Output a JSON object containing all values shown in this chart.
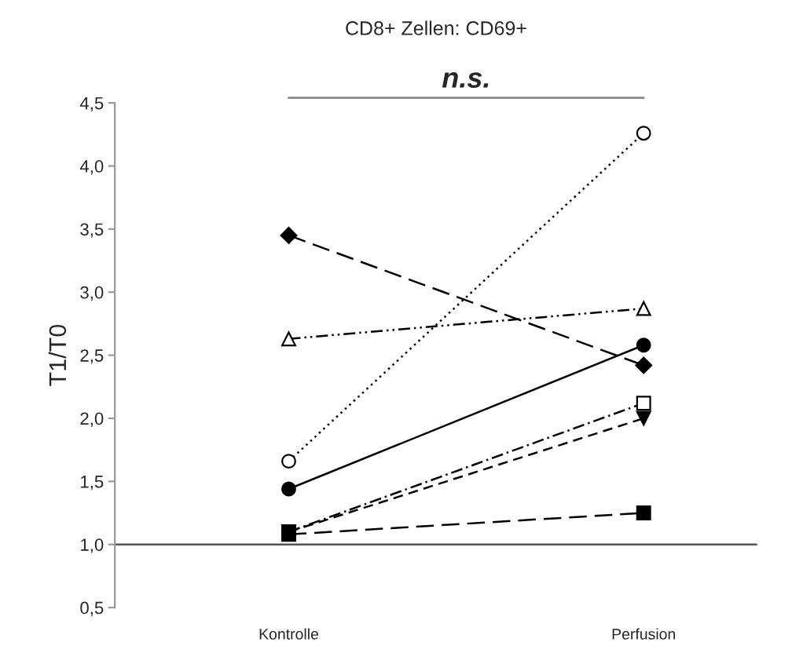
{
  "chart_data": {
    "type": "line",
    "title": "CD8+ Zellen: CD69+",
    "ylabel": "T1/T0",
    "categories": [
      "Kontrolle",
      "Perfusion"
    ],
    "series": [
      {
        "color": "#000000",
        "values": [
          3.45,
          2.42
        ],
        "marker": "diamond",
        "line_style": "longdash"
      },
      {
        "color": "#000000",
        "values": [
          2.63,
          2.87
        ],
        "marker": "triangle-open",
        "line_style": "dashdotdot"
      },
      {
        "color": "#000000",
        "values": [
          1.66,
          4.26
        ],
        "marker": "circle-open",
        "line_style": "dotted"
      },
      {
        "color": "#000000",
        "values": [
          1.44,
          2.58
        ],
        "marker": "circle",
        "line_style": "solid"
      },
      {
        "color": "#000000",
        "values": [
          1.1,
          2.12
        ],
        "marker": "square-open",
        "line_style": "dashdot"
      },
      {
        "color": "#000000",
        "values": [
          1.1,
          2.0
        ],
        "marker": "triangle-down",
        "line_style": "dashed"
      },
      {
        "color": "#000000",
        "values": [
          1.08,
          1.25
        ],
        "marker": "square",
        "line_style": "longdash"
      }
    ],
    "ylim": [
      0.5,
      4.5
    ],
    "yticks": [
      {
        "value": 0.5,
        "label": "0,5"
      },
      {
        "value": 1.0,
        "label": "1,0"
      },
      {
        "value": 1.5,
        "label": "1,5"
      },
      {
        "value": 2.0,
        "label": "2,0"
      },
      {
        "value": 2.5,
        "label": "2,5"
      },
      {
        "value": 3.0,
        "label": "3,0"
      },
      {
        "value": 3.5,
        "label": "3,5"
      },
      {
        "value": 4.0,
        "label": "4,0"
      },
      {
        "value": 4.5,
        "label": "4,5"
      }
    ],
    "ref_lines": [
      {
        "axis": "y",
        "value": 1.0,
        "color": "#555555"
      }
    ],
    "annotations": [
      "n.s."
    ],
    "grid": false,
    "legend": false
  }
}
